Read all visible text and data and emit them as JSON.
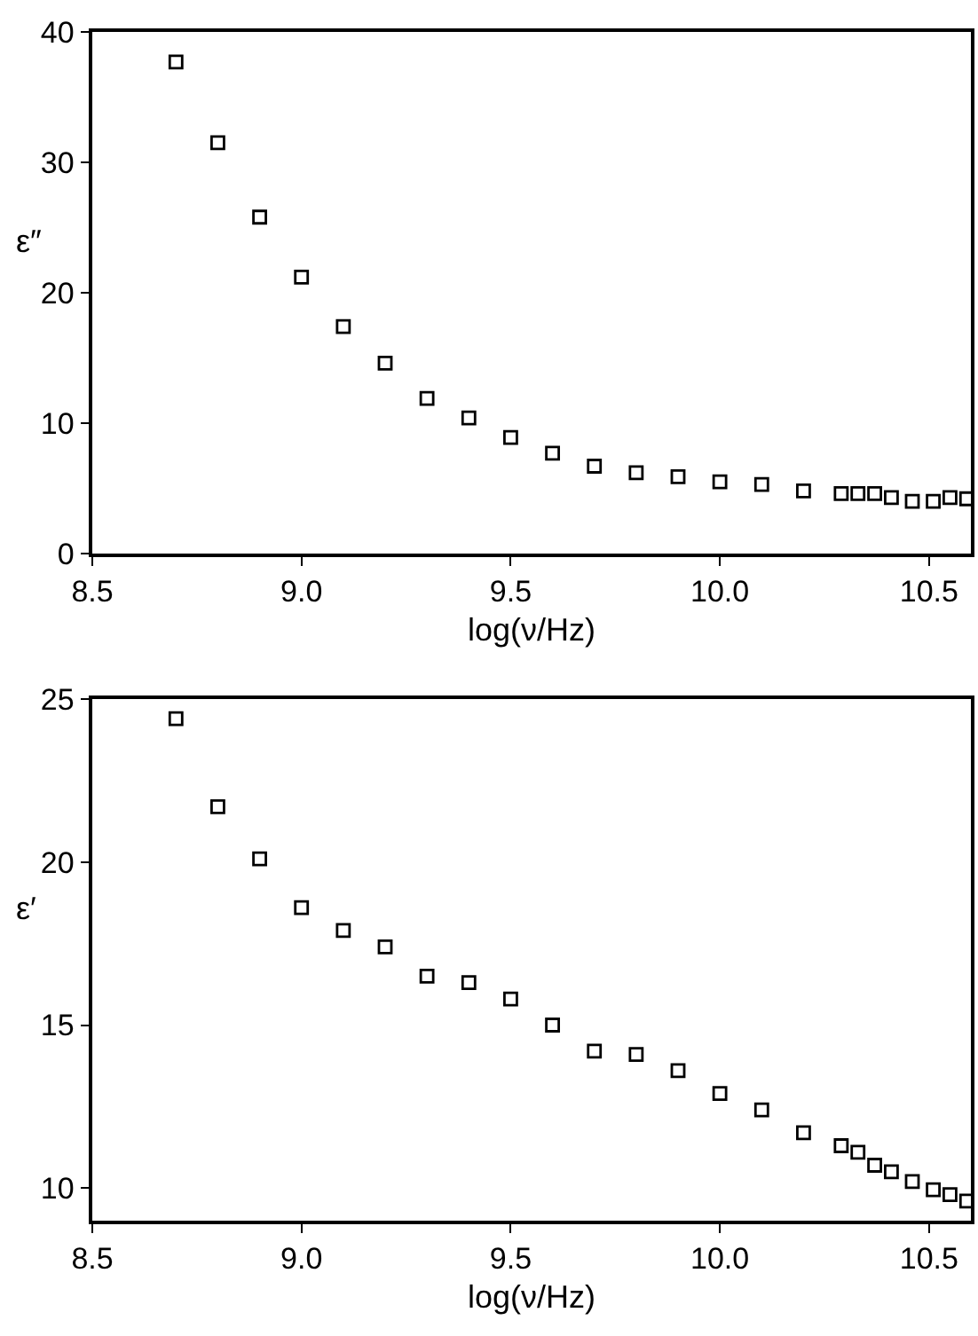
{
  "chart_data": [
    {
      "type": "scatter",
      "xlabel": "log(ν/Hz)",
      "ylabel": "ε″",
      "marker": "square",
      "xlim": [
        8.5,
        10.6
      ],
      "xticks": [
        {
          "value": 8.5,
          "label": "8.5"
        },
        {
          "value": 9,
          "label": "9.0"
        },
        {
          "value": 9.5,
          "label": "9.5"
        },
        {
          "value": 10,
          "label": "10.0"
        },
        {
          "value": 10.5,
          "label": "10.5"
        }
      ],
      "ylim": [
        0,
        40
      ],
      "yticks": [
        0,
        10,
        20,
        30,
        40
      ],
      "series": [
        {
          "color": "#000000",
          "x": [
            8.7,
            8.8,
            8.9,
            9.0,
            9.1,
            9.2,
            9.3,
            9.4,
            9.5,
            9.6,
            9.7,
            9.8,
            9.9,
            10.0,
            10.1,
            10.2,
            10.29,
            10.33,
            10.37,
            10.41,
            10.46,
            10.51,
            10.55,
            10.59
          ],
          "values": [
            37.7,
            31.5,
            25.8,
            21.2,
            17.4,
            14.6,
            11.9,
            10.4,
            8.9,
            7.7,
            6.7,
            6.2,
            5.9,
            5.5,
            5.3,
            4.8,
            4.6,
            4.6,
            4.6,
            4.3,
            4.0,
            4.0,
            4.3,
            4.2
          ]
        }
      ]
    },
    {
      "type": "scatter",
      "xlabel": "log(ν/Hz)",
      "ylabel": "ε′",
      "marker": "square",
      "xlim": [
        8.5,
        10.6
      ],
      "xticks": [
        {
          "value": 8.5,
          "label": "8.5"
        },
        {
          "value": 9,
          "label": "9.0"
        },
        {
          "value": 9.5,
          "label": "9.5"
        },
        {
          "value": 10,
          "label": "10.0"
        },
        {
          "value": 10.5,
          "label": "10.5"
        }
      ],
      "ylim": [
        9,
        25
      ],
      "yticks": [
        10,
        15,
        20,
        25
      ],
      "series": [
        {
          "color": "#000000",
          "x": [
            8.7,
            8.8,
            8.9,
            9.0,
            9.1,
            9.2,
            9.3,
            9.4,
            9.5,
            9.6,
            9.7,
            9.8,
            9.9,
            10.0,
            10.1,
            10.2,
            10.29,
            10.33,
            10.37,
            10.41,
            10.46,
            10.51,
            10.55,
            10.59
          ],
          "values": [
            24.4,
            21.7,
            20.1,
            18.6,
            17.9,
            17.4,
            16.5,
            16.3,
            15.8,
            15.0,
            14.2,
            14.1,
            13.6,
            12.9,
            12.4,
            11.7,
            11.3,
            11.1,
            10.7,
            10.5,
            10.2,
            9.95,
            9.8,
            9.6
          ]
        }
      ]
    }
  ]
}
